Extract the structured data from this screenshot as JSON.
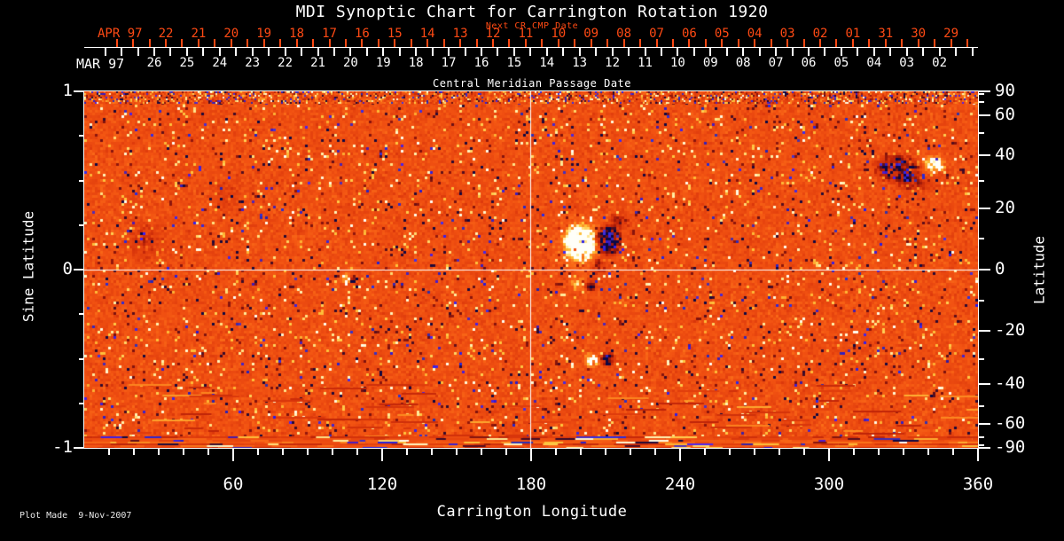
{
  "title": "MDI Synoptic Chart for Carrington Rotation 1920",
  "subtitle_next_cr": "Next CR CMP Date",
  "cmp_axis_title": "Central Meridian Passage Date",
  "footer_note": "Plot Made  9-Nov-2007",
  "colors": {
    "background": "#000000",
    "foreground": "#ffffff",
    "date_accent": "#ff4a14",
    "map_base": "#ee5212",
    "map_negative": "#10084a",
    "map_positive": "#fffaf0"
  },
  "top_axis": {
    "next_label": "APR 97",
    "next_dates": [
      "22",
      "21",
      "20",
      "19",
      "18",
      "17",
      "16",
      "15",
      "14",
      "13",
      "12",
      "11",
      "10",
      "09",
      "08",
      "07",
      "06",
      "05",
      "04",
      "03",
      "02",
      "01",
      "31",
      "30",
      "29"
    ],
    "current_label": "MAR 97",
    "current_dates": [
      "26",
      "25",
      "24",
      "23",
      "22",
      "21",
      "20",
      "19",
      "18",
      "17",
      "16",
      "15",
      "14",
      "13",
      "12",
      "11",
      "10",
      "09",
      "08",
      "07",
      "06",
      "05",
      "04",
      "03",
      "02"
    ]
  },
  "y_axis_left": {
    "title": "Sine Latitude",
    "labels": [
      "1",
      "0",
      "-1"
    ],
    "values": [
      1,
      0,
      -1
    ],
    "minor_values": [
      0.75,
      0.5,
      0.25,
      -0.25,
      -0.5,
      -0.75
    ]
  },
  "y_axis_right": {
    "title": "Latitude",
    "labels": [
      "90",
      "60",
      "40",
      "20",
      "0",
      "-20",
      "-40",
      "-60",
      "-90"
    ],
    "values": [
      90,
      60,
      40,
      20,
      0,
      -20,
      -40,
      -60,
      -90
    ],
    "minor_values": [
      80,
      70,
      50,
      30,
      10,
      -10,
      -30,
      -50,
      -70,
      -80
    ]
  },
  "x_axis": {
    "title": "Carrington Longitude",
    "labels": [
      "60",
      "120",
      "180",
      "240",
      "300",
      "360"
    ],
    "values": [
      60,
      120,
      180,
      240,
      300,
      360
    ],
    "minor_step": 10
  },
  "chart_data": {
    "type": "heatmap",
    "title": "MDI Synoptic Chart for Carrington Rotation 1920",
    "xlabel": "Carrington Longitude",
    "xlim": [
      0,
      360
    ],
    "xticks": [
      60,
      120,
      180,
      240,
      300,
      360
    ],
    "ylabel_left": "Sine Latitude",
    "ylim": [
      -1,
      1
    ],
    "yticks_left": [
      1,
      0,
      -1
    ],
    "ylabel_right": "Latitude",
    "yticks_right": [
      90,
      60,
      40,
      20,
      0,
      -20,
      -40,
      -60,
      -90
    ],
    "grid": "crosshair",
    "crosshair": {
      "longitude": 180,
      "sine_latitude": 0
    },
    "palette": "black-red-orange-yellow-white magnetogram, blue for strong negative field",
    "cmp_dates_current": "MAR 97: 26 down to 02 (left to right)",
    "cmp_dates_next": "APR 97: 22 down to 01, then 31 30 29 (left to right)",
    "active_regions": [
      {
        "lon": 199,
        "sine_lat": 0.16,
        "r_lon": 8,
        "r_sine_lat": 0.12,
        "polarity": "positive",
        "strength": 0.6
      },
      {
        "lon": 200,
        "sine_lat": 0.15,
        "r_lon": 14,
        "r_sine_lat": 0.19,
        "polarity": "positive",
        "strength": 0.22
      },
      {
        "lon": 210.5,
        "sine_lat": 0.17,
        "r_lon": 6,
        "r_sine_lat": 0.105,
        "polarity": "negative",
        "strength": 0.85
      },
      {
        "lon": 207,
        "sine_lat": 0.03,
        "r_lon": 4.5,
        "r_sine_lat": 0.06,
        "polarity": "negative",
        "strength": 0.35
      },
      {
        "lon": 215,
        "sine_lat": 0.28,
        "r_lon": 5,
        "r_sine_lat": 0.06,
        "polarity": "negative",
        "strength": 0.3
      },
      {
        "lon": 327,
        "sine_lat": 0.575,
        "r_lon": 11,
        "r_sine_lat": 0.09,
        "polarity": "negative",
        "strength": 0.5
      },
      {
        "lon": 342,
        "sine_lat": 0.6,
        "r_lon": 5.5,
        "r_sine_lat": 0.06,
        "polarity": "positive",
        "strength": 0.6
      },
      {
        "lon": 334,
        "sine_lat": 0.49,
        "r_lon": 10,
        "r_sine_lat": 0.06,
        "polarity": "negative",
        "strength": 0.25
      },
      {
        "lon": 198.5,
        "sine_lat": -0.075,
        "r_lon": 3.2,
        "r_sine_lat": 0.045,
        "polarity": "positive",
        "strength": 0.45
      },
      {
        "lon": 203.5,
        "sine_lat": -0.08,
        "r_lon": 2.6,
        "r_sine_lat": 0.04,
        "polarity": "negative",
        "strength": 0.55
      },
      {
        "lon": 204,
        "sine_lat": -0.5,
        "r_lon": 4,
        "r_sine_lat": 0.05,
        "polarity": "positive",
        "strength": 0.55
      },
      {
        "lon": 210.5,
        "sine_lat": -0.495,
        "r_lon": 3.2,
        "r_sine_lat": 0.045,
        "polarity": "negative",
        "strength": 0.7
      },
      {
        "lon": 105,
        "sine_lat": -0.04,
        "r_lon": 2.6,
        "r_sine_lat": 0.04,
        "polarity": "positive",
        "strength": 0.45
      },
      {
        "lon": 108.5,
        "sine_lat": -0.05,
        "r_lon": 2.2,
        "r_sine_lat": 0.035,
        "polarity": "negative",
        "strength": 0.45
      },
      {
        "lon": 24,
        "sine_lat": 0.17,
        "r_lon": 10,
        "r_sine_lat": 0.14,
        "polarity": "negative",
        "strength": 0.16
      },
      {
        "lon": 57,
        "sine_lat": 0.42,
        "r_lon": 7,
        "r_sine_lat": 0.1,
        "polarity": "negative",
        "strength": 0.13
      }
    ]
  }
}
